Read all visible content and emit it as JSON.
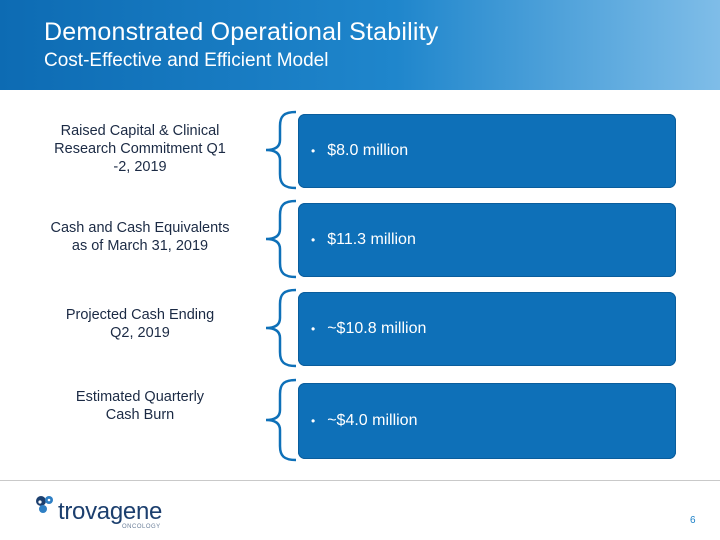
{
  "header": {
    "title": "Demonstrated Operational Stability",
    "subtitle": "Cost-Effective and Efficient Model"
  },
  "rows": [
    {
      "label_lines": [
        "Raised Capital & Clinical",
        "Research Commitment  Q1",
        "-2, 2019"
      ],
      "value": "$8.0 million"
    },
    {
      "label_lines": [
        "Cash and Cash Equivalents",
        "as of March 31, 2019"
      ],
      "value": "$11.3 million"
    },
    {
      "label_lines": [
        "Projected Cash Ending",
        "Q2, 2019"
      ],
      "value": "~$10.8 million"
    },
    {
      "label_lines": [
        "Estimated Quarterly",
        "Cash Burn"
      ],
      "value": "~$4.0 million"
    }
  ],
  "bullet": "•",
  "logo": {
    "word": "trovagene",
    "sub": "ONCOLOGY",
    "mark_icon": "dna-molecule-icon"
  },
  "page_number": "6",
  "colors": {
    "header_blue": "#0d6bb3",
    "box_blue": "#0e70b8",
    "label_text": "#1b2a44",
    "logo_navy": "#1c3f6e"
  }
}
